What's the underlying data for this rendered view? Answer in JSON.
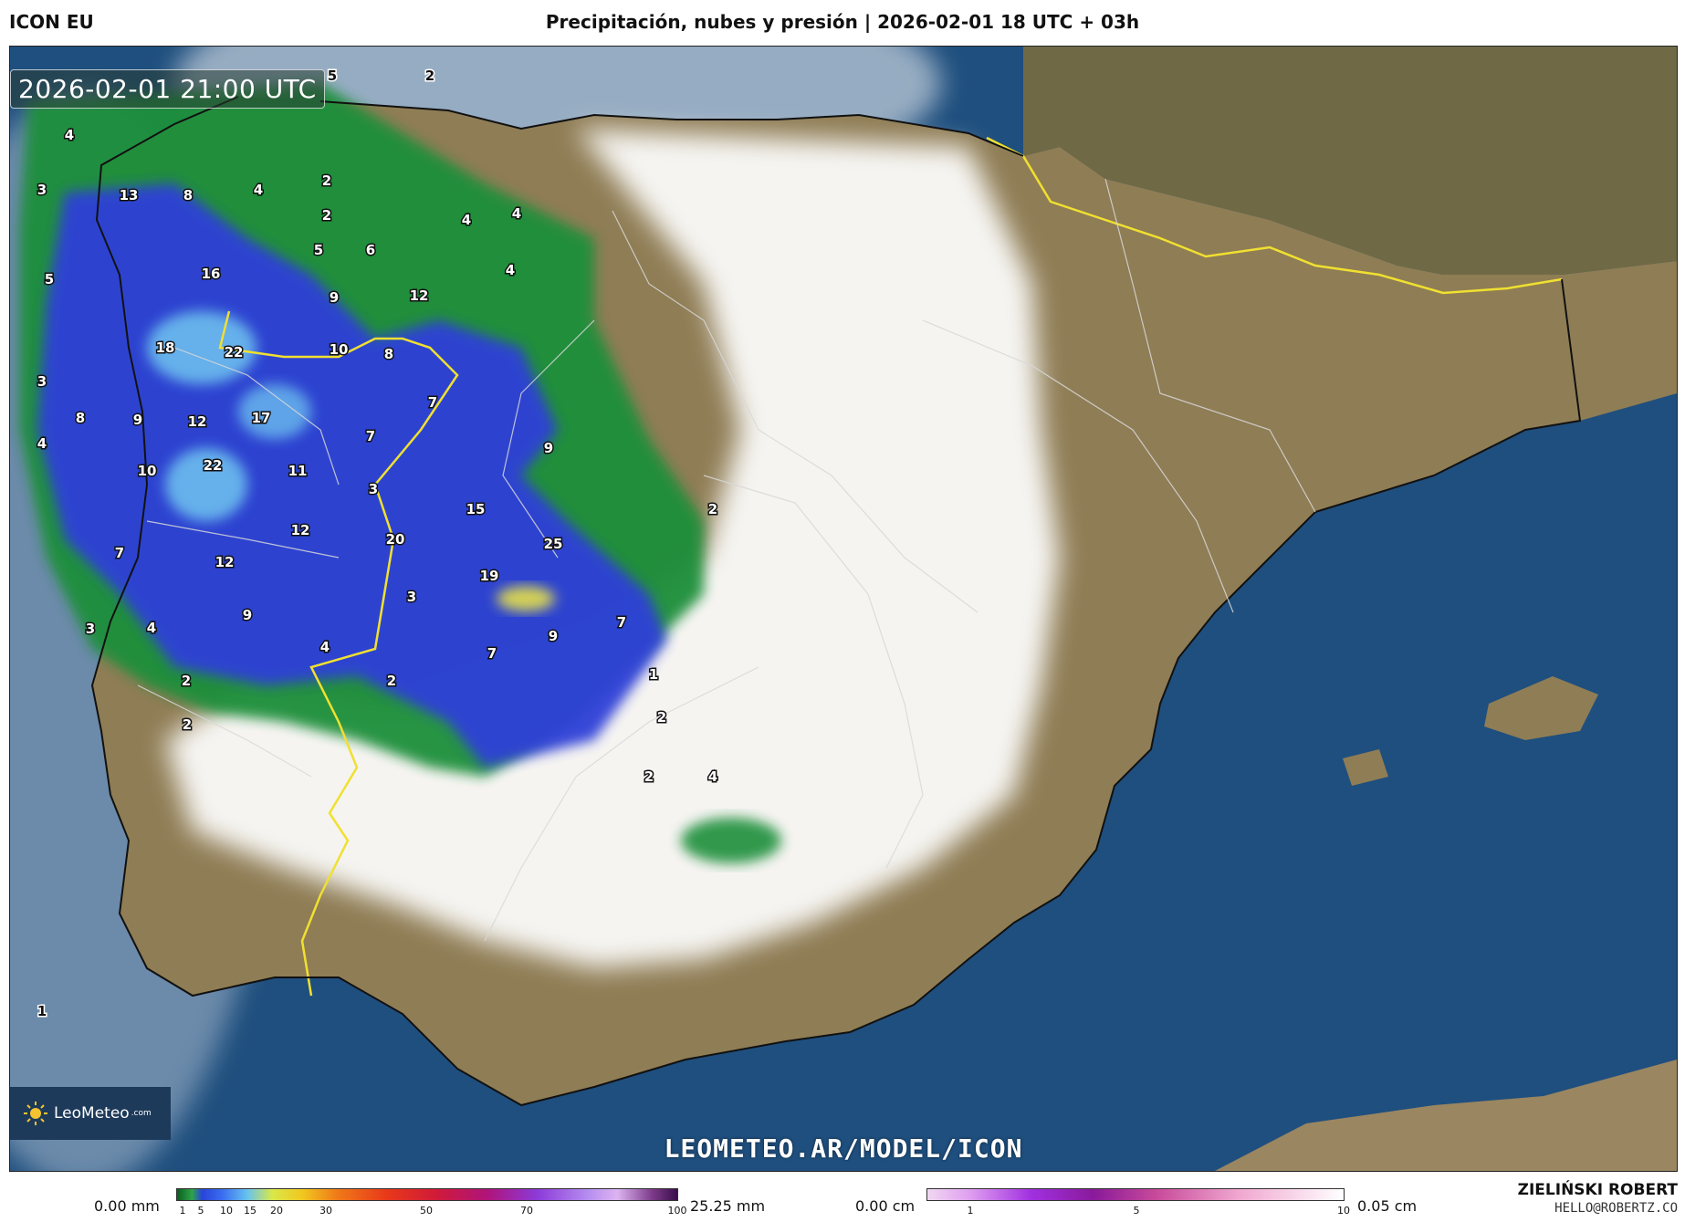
{
  "header": {
    "model": "ICON EU",
    "title": "Precipitación, nubes y presión | 2026-02-01 18 UTC + 03h"
  },
  "map": {
    "timestamp": "2026-02-01 21:00 UTC",
    "watermark": "LEOMETEO.AR/MODEL/ICON",
    "logo_text": "LeoMeteo",
    "logo_suffix": ".com",
    "precip_labels": [
      "5",
      "2",
      "4",
      "3",
      "13",
      "8",
      "4",
      "2",
      "2",
      "4",
      "4",
      "5",
      "6",
      "5",
      "16",
      "4",
      "9",
      "12",
      "18",
      "22",
      "10",
      "8",
      "3",
      "8",
      "9",
      "12",
      "17",
      "7",
      "7",
      "4",
      "10",
      "22",
      "11",
      "9",
      "3",
      "15",
      "2",
      "12",
      "20",
      "25",
      "7",
      "12",
      "19",
      "3",
      "3",
      "4",
      "9",
      "7",
      "9",
      "7",
      "4",
      "2",
      "2",
      "1",
      "2",
      "2",
      "2",
      "4",
      "1"
    ],
    "colors": {
      "sea": "#1f4f7e",
      "land": "#8f7d55",
      "cloud": "#ffffff",
      "precip_light": "#1f8f3a",
      "precip_mid": "#2d40d8",
      "precip_high": "#6fc4f0",
      "border_national": "#f0e030",
      "border_regional": "#cccccc"
    }
  },
  "legend": {
    "precip": {
      "min_label": "0.00 mm",
      "max_label": "25.25 mm",
      "ticks": [
        "1",
        "5",
        "10",
        "15",
        "20",
        "30",
        "50",
        "70",
        "100"
      ]
    },
    "snow": {
      "min_label": "0.00 cm",
      "max_label": "0.05 cm",
      "ticks": [
        "1",
        "5",
        "10"
      ]
    }
  },
  "credit": {
    "author": "ZIELIŃSKI ROBERT",
    "email": "HELLO@ROBERTZ.CO"
  }
}
